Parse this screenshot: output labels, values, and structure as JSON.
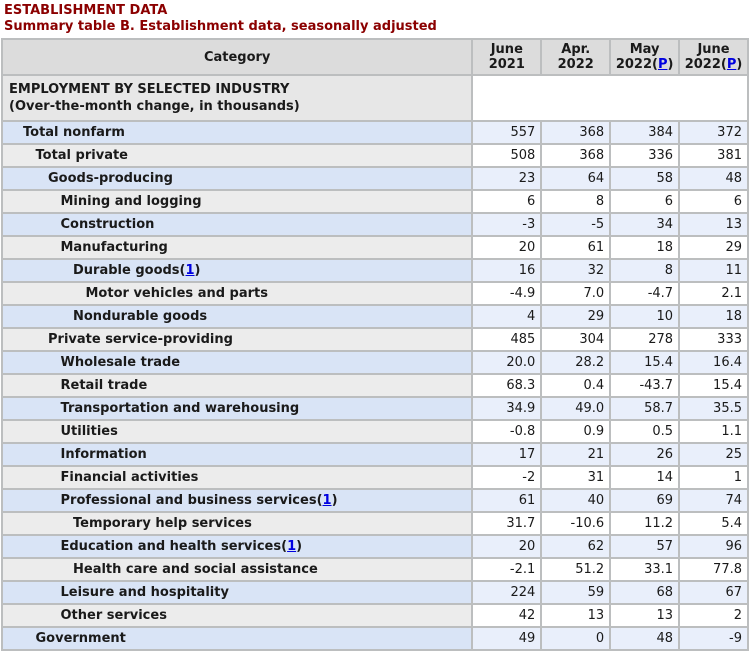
{
  "page": {
    "title_line1": "ESTABLISHMENT DATA",
    "title_line2": "Summary table B. Establishment data, seasonally adjusted"
  },
  "colors": {
    "title_maroon": "#8b0000",
    "link_blue": "#0000e0",
    "header_gray": "#dcdcdc",
    "section_gray": "#e7e7e7",
    "row_blue_category": "#d9e4f6",
    "row_blue_data": "#e9effb",
    "row_gray_category": "#ececec",
    "row_white_data": "#ffffff",
    "gridline_gray": "#bcbebf"
  },
  "table": {
    "category_header": "Category",
    "columns": [
      {
        "line1": "June",
        "line2_prefix": "2021",
        "preliminary_link": null
      },
      {
        "line1": "Apr.",
        "line2_prefix": "2022",
        "preliminary_link": null
      },
      {
        "line1": "May",
        "line2_prefix": "2022",
        "preliminary_link": "P"
      },
      {
        "line1": "June",
        "line2_prefix": "2022",
        "preliminary_link": "P"
      }
    ],
    "section": {
      "line1": "EMPLOYMENT BY SELECTED INDUSTRY",
      "line2": "(Over-the-month change, in thousands)"
    },
    "rows": [
      {
        "label": "Total nonfarm",
        "indent": 1,
        "footnote": null,
        "values": [
          "557",
          "368",
          "384",
          "372"
        ]
      },
      {
        "label": "Total private",
        "indent": 2,
        "footnote": null,
        "values": [
          "508",
          "368",
          "336",
          "381"
        ]
      },
      {
        "label": "Goods-producing",
        "indent": 3,
        "footnote": null,
        "values": [
          "23",
          "64",
          "58",
          "48"
        ]
      },
      {
        "label": "Mining and logging",
        "indent": 4,
        "footnote": null,
        "values": [
          "6",
          "8",
          "6",
          "6"
        ]
      },
      {
        "label": "Construction",
        "indent": 4,
        "footnote": null,
        "values": [
          "-3",
          "-5",
          "34",
          "13"
        ]
      },
      {
        "label": "Manufacturing",
        "indent": 4,
        "footnote": null,
        "values": [
          "20",
          "61",
          "18",
          "29"
        ]
      },
      {
        "label": "Durable goods",
        "indent": 5,
        "footnote": "1",
        "values": [
          "16",
          "32",
          "8",
          "11"
        ]
      },
      {
        "label": "Motor vehicles and parts",
        "indent": 6,
        "footnote": null,
        "values": [
          "-4.9",
          "7.0",
          "-4.7",
          "2.1"
        ]
      },
      {
        "label": "Nondurable goods",
        "indent": 5,
        "footnote": null,
        "values": [
          "4",
          "29",
          "10",
          "18"
        ]
      },
      {
        "label": "Private service-providing",
        "indent": 3,
        "footnote": null,
        "values": [
          "485",
          "304",
          "278",
          "333"
        ]
      },
      {
        "label": "Wholesale trade",
        "indent": 4,
        "footnote": null,
        "values": [
          "20.0",
          "28.2",
          "15.4",
          "16.4"
        ]
      },
      {
        "label": "Retail trade",
        "indent": 4,
        "footnote": null,
        "values": [
          "68.3",
          "0.4",
          "-43.7",
          "15.4"
        ]
      },
      {
        "label": "Transportation and warehousing",
        "indent": 4,
        "footnote": null,
        "values": [
          "34.9",
          "49.0",
          "58.7",
          "35.5"
        ]
      },
      {
        "label": "Utilities",
        "indent": 4,
        "footnote": null,
        "values": [
          "-0.8",
          "0.9",
          "0.5",
          "1.1"
        ]
      },
      {
        "label": "Information",
        "indent": 4,
        "footnote": null,
        "values": [
          "17",
          "21",
          "26",
          "25"
        ]
      },
      {
        "label": "Financial activities",
        "indent": 4,
        "footnote": null,
        "values": [
          "-2",
          "31",
          "14",
          "1"
        ]
      },
      {
        "label": "Professional and business services",
        "indent": 4,
        "footnote": "1",
        "values": [
          "61",
          "40",
          "69",
          "74"
        ]
      },
      {
        "label": "Temporary help services",
        "indent": 5,
        "footnote": null,
        "values": [
          "31.7",
          "-10.6",
          "11.2",
          "5.4"
        ]
      },
      {
        "label": "Education and health services",
        "indent": 4,
        "footnote": "1",
        "values": [
          "20",
          "62",
          "57",
          "96"
        ]
      },
      {
        "label": "Health care and social assistance",
        "indent": 5,
        "footnote": null,
        "values": [
          "-2.1",
          "51.2",
          "33.1",
          "77.8"
        ]
      },
      {
        "label": "Leisure and hospitality",
        "indent": 4,
        "footnote": null,
        "values": [
          "224",
          "59",
          "68",
          "67"
        ]
      },
      {
        "label": "Other services",
        "indent": 4,
        "footnote": null,
        "values": [
          "42",
          "13",
          "13",
          "2"
        ]
      },
      {
        "label": "Government",
        "indent": 2,
        "footnote": null,
        "values": [
          "49",
          "0",
          "48",
          "-9"
        ]
      }
    ]
  }
}
